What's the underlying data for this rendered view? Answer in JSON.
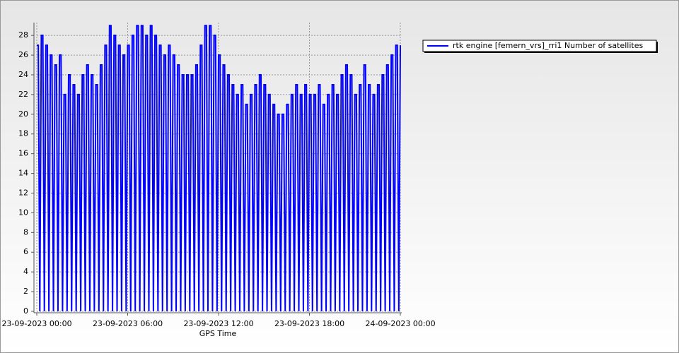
{
  "chart_data": {
    "type": "line",
    "x_label": "GPS Time",
    "xlim": [
      0,
      24
    ],
    "xticks": [
      {
        "value": 0,
        "label": "23-09-2023 00:00"
      },
      {
        "value": 6,
        "label": "23-09-2023 06:00"
      },
      {
        "value": 12,
        "label": "23-09-2023 12:00"
      },
      {
        "value": 18,
        "label": "23-09-2023 18:00"
      },
      {
        "value": 24,
        "label": "24-09-2023 00:00"
      }
    ],
    "ylim": [
      0,
      29.3
    ],
    "yticks": [
      0,
      2,
      4,
      6,
      8,
      10,
      12,
      14,
      16,
      18,
      20,
      22,
      24,
      26,
      28
    ],
    "grid": true,
    "legend": "top-right",
    "x": [
      0,
      0.1,
      0.2,
      0.3,
      0.4,
      0.5,
      0.6,
      0.7,
      0.8,
      0.9,
      1,
      1.1,
      1.2,
      1.3,
      1.4,
      1.5,
      1.6,
      1.7,
      1.8,
      1.9,
      2,
      2.1,
      2.2,
      2.3,
      2.4,
      2.5,
      2.6,
      2.7,
      2.8,
      2.9,
      3,
      3.1,
      3.2,
      3.3,
      3.4,
      3.5,
      3.6,
      3.7,
      3.8,
      3.9,
      4,
      4.1,
      4.2,
      4.3,
      4.4,
      4.5,
      4.6,
      4.7,
      4.8,
      4.9,
      5,
      5.1,
      5.2,
      5.3,
      5.4,
      5.5,
      5.6,
      5.7,
      5.8,
      5.9,
      6,
      6.1,
      6.2,
      6.3,
      6.4,
      6.5,
      6.6,
      6.7,
      6.8,
      6.9,
      7,
      7.1,
      7.2,
      7.3,
      7.4,
      7.5,
      7.6,
      7.7,
      7.8,
      7.9,
      8,
      8.1,
      8.2,
      8.3,
      8.4,
      8.5,
      8.6,
      8.7,
      8.8,
      8.9,
      9,
      9.1,
      9.2,
      9.3,
      9.4,
      9.5,
      9.6,
      9.7,
      9.8,
      9.9,
      10,
      10.1,
      10.2,
      10.3,
      10.4,
      10.5,
      10.6,
      10.7,
      10.8,
      10.9,
      11,
      11.1,
      11.2,
      11.3,
      11.4,
      11.5,
      11.6,
      11.7,
      11.8,
      11.9,
      12,
      12.1,
      12.2,
      12.3,
      12.4,
      12.5,
      12.6,
      12.7,
      12.8,
      12.9,
      13,
      13.1,
      13.2,
      13.3,
      13.4,
      13.5,
      13.6,
      13.7,
      13.8,
      13.9,
      14,
      14.1,
      14.2,
      14.3,
      14.4,
      14.5,
      14.6,
      14.7,
      14.8,
      14.9,
      15,
      15.1,
      15.2,
      15.3,
      15.4,
      15.5,
      15.6,
      15.7,
      15.8,
      15.9,
      16,
      16.1,
      16.2,
      16.3,
      16.4,
      16.5,
      16.6,
      16.7,
      16.8,
      16.9,
      17,
      17.1,
      17.2,
      17.3,
      17.4,
      17.5,
      17.6,
      17.7,
      17.8,
      17.9,
      18,
      18.1,
      18.2,
      18.3,
      18.4,
      18.5,
      18.6,
      18.7,
      18.8,
      18.9,
      19,
      19.1,
      19.2,
      19.3,
      19.4,
      19.5,
      19.6,
      19.7,
      19.8,
      19.9,
      20,
      20.1,
      20.2,
      20.3,
      20.4,
      20.5,
      20.6,
      20.7,
      20.8,
      20.9,
      21,
      21.1,
      21.2,
      21.3,
      21.4,
      21.5,
      21.6,
      21.7,
      21.8,
      21.9,
      22,
      22.1,
      22.2,
      22.3,
      22.4,
      22.5,
      22.6,
      22.7,
      22.8,
      22.9,
      23,
      23.1,
      23.2,
      23.3,
      23.4,
      23.5,
      23.6,
      23.7,
      23.8,
      23.9,
      24
    ],
    "series": [
      {
        "name": "rtk engine [femern_vrs]_rri1 Number of satellites",
        "color": "#0000ff",
        "values": [
          27,
          27,
          0,
          28,
          28,
          0,
          27,
          27,
          0,
          26,
          26,
          0,
          25,
          25,
          0,
          26,
          26,
          0,
          22,
          22,
          0,
          24,
          24,
          0,
          23,
          23,
          0,
          22,
          22,
          0,
          24,
          24,
          0,
          25,
          25,
          0,
          24,
          24,
          0,
          23,
          23,
          0,
          25,
          25,
          0,
          27,
          27,
          0,
          29,
          29,
          0,
          28,
          28,
          0,
          27,
          27,
          0,
          26,
          26,
          0,
          27,
          27,
          0,
          28,
          28,
          0,
          29,
          29,
          0,
          29,
          29,
          0,
          28,
          28,
          0,
          29,
          29,
          0,
          28,
          28,
          0,
          27,
          27,
          0,
          26,
          26,
          0,
          27,
          27,
          0,
          26,
          26,
          0,
          25,
          25,
          0,
          24,
          24,
          0,
          24,
          24,
          0,
          24,
          24,
          0,
          25,
          25,
          0,
          27,
          27,
          0,
          29,
          29,
          0,
          29,
          29,
          0,
          28,
          28,
          0,
          26,
          26,
          0,
          25,
          25,
          0,
          24,
          24,
          0,
          23,
          23,
          0,
          22,
          22,
          0,
          23,
          23,
          0,
          21,
          21,
          0,
          22,
          22,
          0,
          23,
          23,
          0,
          24,
          24,
          0,
          23,
          23,
          0,
          22,
          22,
          0,
          21,
          21,
          0,
          20,
          20,
          0,
          20,
          20,
          0,
          21,
          21,
          0,
          22,
          22,
          0,
          23,
          23,
          0,
          22,
          22,
          0,
          23,
          23,
          0,
          22,
          22,
          0,
          22,
          22,
          0,
          23,
          23,
          0,
          21,
          21,
          0,
          22,
          22,
          0,
          23,
          23,
          0,
          22,
          22,
          0,
          24,
          24,
          0,
          25,
          25,
          0,
          24,
          24,
          0,
          22,
          22,
          0,
          23,
          23,
          0,
          25,
          25,
          0,
          23,
          23,
          0,
          22,
          22,
          0,
          23,
          23,
          0,
          24,
          24,
          0,
          25,
          25,
          0,
          26,
          26,
          0,
          27,
          27,
          0,
          27
        ]
      }
    ]
  }
}
